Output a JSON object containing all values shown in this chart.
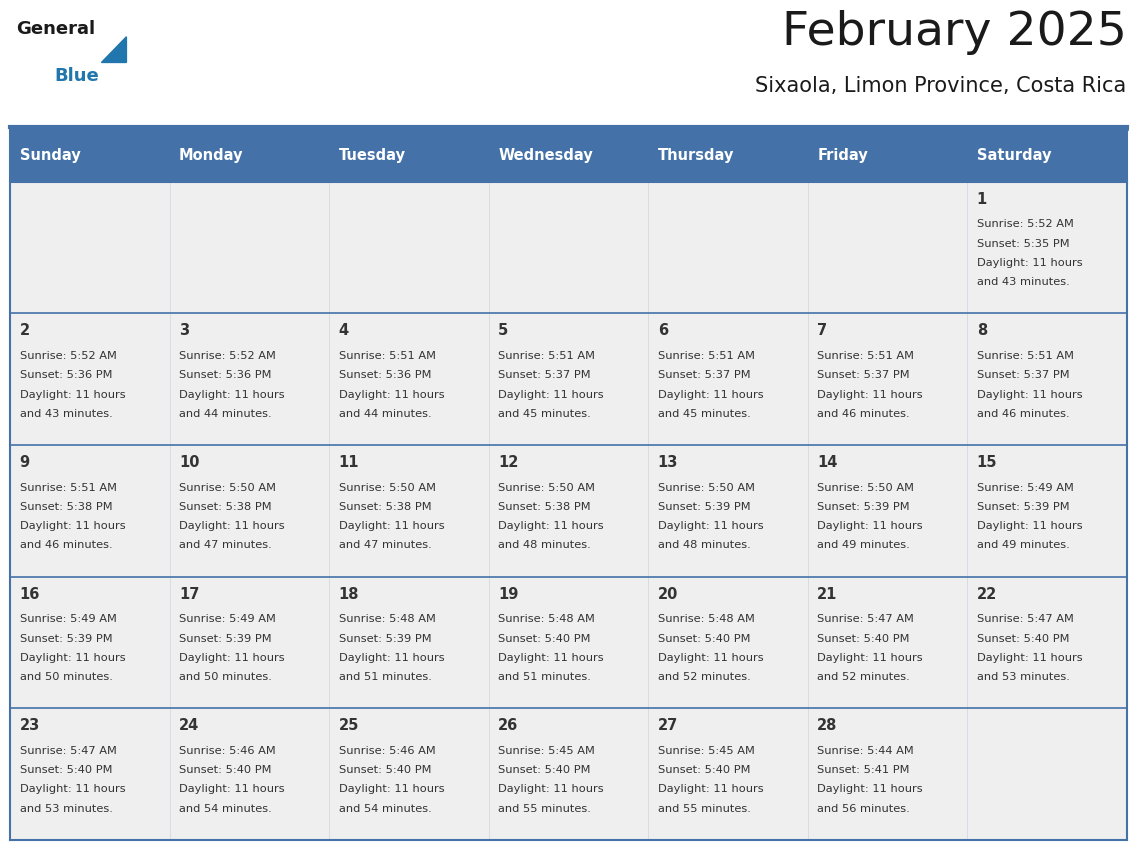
{
  "title": "February 2025",
  "subtitle": "Sixaola, Limon Province, Costa Rica",
  "header_bg": "#4472A8",
  "header_text": "#FFFFFF",
  "cell_bg_light": "#EFEFEF",
  "cell_bg_white": "#FFFFFF",
  "border_color": "#4472A8",
  "day_headers": [
    "Sunday",
    "Monday",
    "Tuesday",
    "Wednesday",
    "Thursday",
    "Friday",
    "Saturday"
  ],
  "title_color": "#1a1a1a",
  "subtitle_color": "#1a1a1a",
  "day_number_color": "#333333",
  "info_color": "#333333",
  "logo_general_color": "#1a1a1a",
  "logo_blue_color": "#2176AE",
  "calendar_data": [
    [
      null,
      null,
      null,
      null,
      null,
      null,
      {
        "day": 1,
        "sunrise": "5:52 AM",
        "sunset": "5:35 PM",
        "daylight_hours": 11,
        "daylight_minutes": 43
      }
    ],
    [
      {
        "day": 2,
        "sunrise": "5:52 AM",
        "sunset": "5:36 PM",
        "daylight_hours": 11,
        "daylight_minutes": 43
      },
      {
        "day": 3,
        "sunrise": "5:52 AM",
        "sunset": "5:36 PM",
        "daylight_hours": 11,
        "daylight_minutes": 44
      },
      {
        "day": 4,
        "sunrise": "5:51 AM",
        "sunset": "5:36 PM",
        "daylight_hours": 11,
        "daylight_minutes": 44
      },
      {
        "day": 5,
        "sunrise": "5:51 AM",
        "sunset": "5:37 PM",
        "daylight_hours": 11,
        "daylight_minutes": 45
      },
      {
        "day": 6,
        "sunrise": "5:51 AM",
        "sunset": "5:37 PM",
        "daylight_hours": 11,
        "daylight_minutes": 45
      },
      {
        "day": 7,
        "sunrise": "5:51 AM",
        "sunset": "5:37 PM",
        "daylight_hours": 11,
        "daylight_minutes": 46
      },
      {
        "day": 8,
        "sunrise": "5:51 AM",
        "sunset": "5:37 PM",
        "daylight_hours": 11,
        "daylight_minutes": 46
      }
    ],
    [
      {
        "day": 9,
        "sunrise": "5:51 AM",
        "sunset": "5:38 PM",
        "daylight_hours": 11,
        "daylight_minutes": 46
      },
      {
        "day": 10,
        "sunrise": "5:50 AM",
        "sunset": "5:38 PM",
        "daylight_hours": 11,
        "daylight_minutes": 47
      },
      {
        "day": 11,
        "sunrise": "5:50 AM",
        "sunset": "5:38 PM",
        "daylight_hours": 11,
        "daylight_minutes": 47
      },
      {
        "day": 12,
        "sunrise": "5:50 AM",
        "sunset": "5:38 PM",
        "daylight_hours": 11,
        "daylight_minutes": 48
      },
      {
        "day": 13,
        "sunrise": "5:50 AM",
        "sunset": "5:39 PM",
        "daylight_hours": 11,
        "daylight_minutes": 48
      },
      {
        "day": 14,
        "sunrise": "5:50 AM",
        "sunset": "5:39 PM",
        "daylight_hours": 11,
        "daylight_minutes": 49
      },
      {
        "day": 15,
        "sunrise": "5:49 AM",
        "sunset": "5:39 PM",
        "daylight_hours": 11,
        "daylight_minutes": 49
      }
    ],
    [
      {
        "day": 16,
        "sunrise": "5:49 AM",
        "sunset": "5:39 PM",
        "daylight_hours": 11,
        "daylight_minutes": 50
      },
      {
        "day": 17,
        "sunrise": "5:49 AM",
        "sunset": "5:39 PM",
        "daylight_hours": 11,
        "daylight_minutes": 50
      },
      {
        "day": 18,
        "sunrise": "5:48 AM",
        "sunset": "5:39 PM",
        "daylight_hours": 11,
        "daylight_minutes": 51
      },
      {
        "day": 19,
        "sunrise": "5:48 AM",
        "sunset": "5:40 PM",
        "daylight_hours": 11,
        "daylight_minutes": 51
      },
      {
        "day": 20,
        "sunrise": "5:48 AM",
        "sunset": "5:40 PM",
        "daylight_hours": 11,
        "daylight_minutes": 52
      },
      {
        "day": 21,
        "sunrise": "5:47 AM",
        "sunset": "5:40 PM",
        "daylight_hours": 11,
        "daylight_minutes": 52
      },
      {
        "day": 22,
        "sunrise": "5:47 AM",
        "sunset": "5:40 PM",
        "daylight_hours": 11,
        "daylight_minutes": 53
      }
    ],
    [
      {
        "day": 23,
        "sunrise": "5:47 AM",
        "sunset": "5:40 PM",
        "daylight_hours": 11,
        "daylight_minutes": 53
      },
      {
        "day": 24,
        "sunrise": "5:46 AM",
        "sunset": "5:40 PM",
        "daylight_hours": 11,
        "daylight_minutes": 54
      },
      {
        "day": 25,
        "sunrise": "5:46 AM",
        "sunset": "5:40 PM",
        "daylight_hours": 11,
        "daylight_minutes": 54
      },
      {
        "day": 26,
        "sunrise": "5:45 AM",
        "sunset": "5:40 PM",
        "daylight_hours": 11,
        "daylight_minutes": 55
      },
      {
        "day": 27,
        "sunrise": "5:45 AM",
        "sunset": "5:40 PM",
        "daylight_hours": 11,
        "daylight_minutes": 55
      },
      {
        "day": 28,
        "sunrise": "5:44 AM",
        "sunset": "5:41 PM",
        "daylight_hours": 11,
        "daylight_minutes": 56
      },
      null
    ]
  ]
}
